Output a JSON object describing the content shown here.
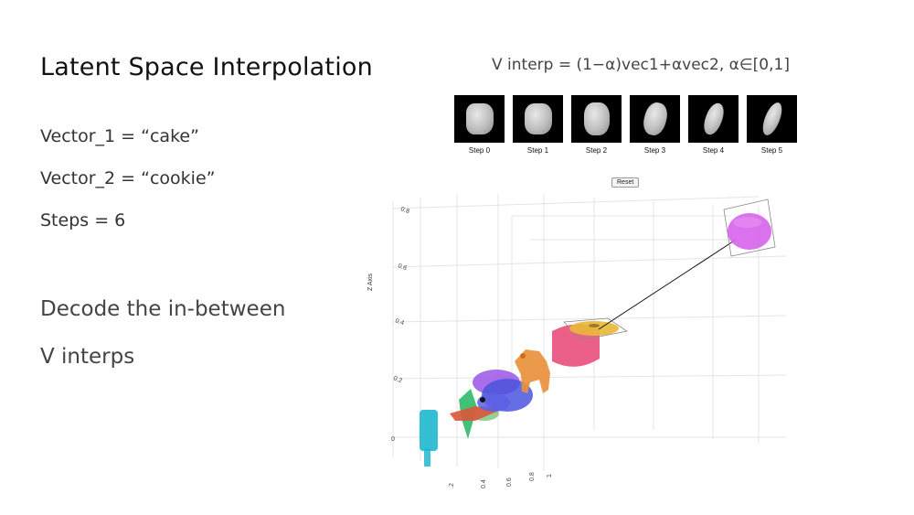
{
  "slide": {
    "title": "Latent Space Interpolation",
    "bullets": [
      "Vector_1 = “cake”",
      "Vector_2 = “cookie”",
      "Steps = 6",
      "Decode the in-between",
      "V interps"
    ]
  },
  "figure": {
    "formula": "V interp = (1−α)vec1+αvec2, α∈[0,1]",
    "steps": [
      {
        "label": "Step 0",
        "shape": "cake"
      },
      {
        "label": "Step 1",
        "shape": "cake"
      },
      {
        "label": "Step 2",
        "shape": "cake"
      },
      {
        "label": "Step 3",
        "shape": "cookie"
      },
      {
        "label": "Step 4",
        "shape": "cookie"
      },
      {
        "label": "Step 5",
        "shape": "cookie"
      }
    ],
    "reset_label": "Reset",
    "plot": {
      "z_axis_label": "Z Axis",
      "z_ticks": [
        "0.8",
        "0.6",
        "0.4",
        "0.2",
        "0"
      ],
      "bottom_ticks": [
        ".2",
        "0.4",
        "0.6",
        "0.8",
        "1"
      ],
      "colors": {
        "cyan": "#1fb8d0",
        "green": "#2dbb6a",
        "red": "#e05a3a",
        "purple": "#7a55e6",
        "blue": "#4a55dd",
        "orange": "#e9913c",
        "pink": "#e9527e",
        "yellow": "#e7b93a",
        "magenta": "#d563ea"
      }
    }
  }
}
